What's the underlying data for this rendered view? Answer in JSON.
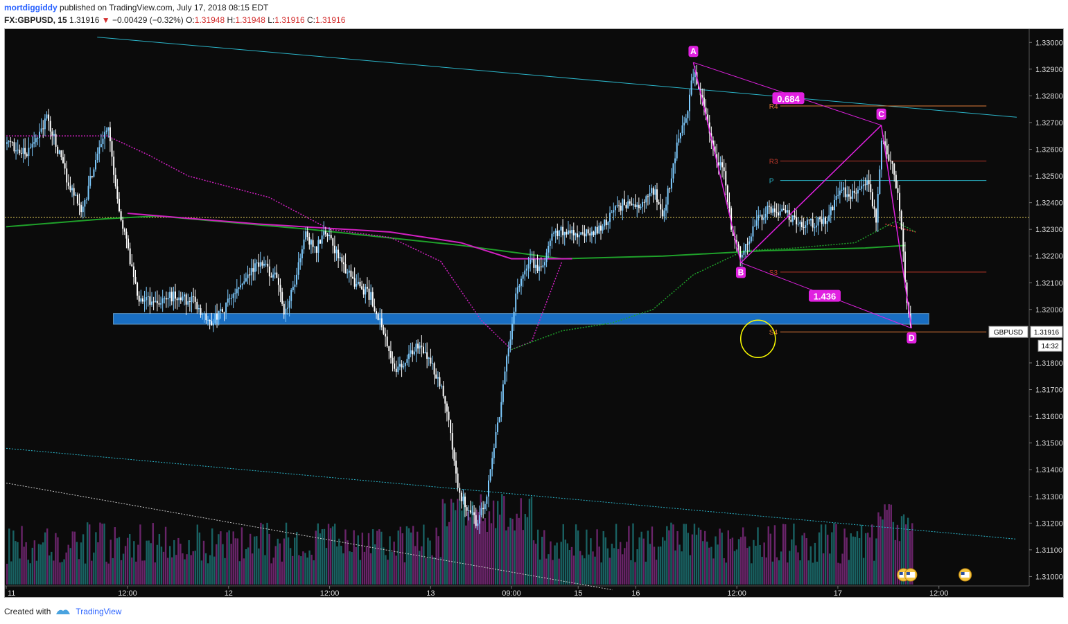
{
  "header": {
    "author": "mortdiggiddy",
    "published": "published on TradingView.com, July 17, 2018 08:15 EDT",
    "symbol": "FX:GBPUSD, 15",
    "last": "1.31916",
    "change": "−0.00429 (−0.32%)",
    "o_label": "O:",
    "o": "1.31948",
    "h_label": "H:",
    "h": "1.31948",
    "l_label": "L:",
    "l": "1.31916",
    "c_label": "C:",
    "c": "1.31916"
  },
  "footer": {
    "created_with": "Created with",
    "brand": "TradingView"
  },
  "chart_data": {
    "type": "candlestick",
    "symbol": "GBPUSD",
    "interval": "15",
    "ylim": [
      1.3097,
      1.3305
    ],
    "y_ticks": [
      "1.33000",
      "1.32900",
      "1.32800",
      "1.32700",
      "1.32600",
      "1.32500",
      "1.32400",
      "1.32300",
      "1.32200",
      "1.32100",
      "1.32000",
      "1.31800",
      "1.31700",
      "1.31600",
      "1.31500",
      "1.31400",
      "1.31300",
      "1.31200",
      "1.31100",
      "1.31000"
    ],
    "x_ticks": [
      {
        "label": "11",
        "x": 0
      },
      {
        "label": "12:00",
        "x": 0.12
      },
      {
        "label": "12",
        "x": 0.22
      },
      {
        "label": "12:00",
        "x": 0.32
      },
      {
        "label": "13",
        "x": 0.42
      },
      {
        "label": "09:00",
        "x": 0.5
      },
      {
        "label": "15",
        "x": 0.566
      },
      {
        "label": "16",
        "x": 0.623
      },
      {
        "label": "12:00",
        "x": 0.723
      },
      {
        "label": "17",
        "x": 0.823
      },
      {
        "label": "12:00",
        "x": 0.923
      }
    ],
    "price_label": "GBPUSD",
    "price_value": "1.31916",
    "countdown": "14:32",
    "pivot_levels": [
      {
        "name": "R4",
        "value": 1.32762,
        "color": "#e07b39"
      },
      {
        "name": "R3",
        "value": 1.32556,
        "color": "#c0392b"
      },
      {
        "name": "P",
        "value": 1.32483,
        "color": "#2bb5c9"
      },
      {
        "name": "S3",
        "value": 1.3214,
        "color": "#c0392b"
      },
      {
        "name": "S4",
        "value": 1.31916,
        "color": "#e07b39"
      }
    ],
    "support_zone": [
      1.31945,
      1.31985
    ],
    "harmonic_pattern": {
      "color": "#e020e0",
      "points": [
        {
          "label": "A",
          "t": 0.68,
          "price": 1.32925
        },
        {
          "label": "B",
          "t": 0.727,
          "price": 1.32175
        },
        {
          "label": "C",
          "t": 0.866,
          "price": 1.3269
        },
        {
          "label": "D",
          "t": 0.896,
          "price": 1.3193
        }
      ],
      "ratios": [
        {
          "text": "0.684",
          "t": 0.774,
          "price": 1.3279
        },
        {
          "text": "1.436",
          "t": 0.81,
          "price": 1.3205
        }
      ]
    },
    "close_series": [
      {
        "t": 0.0,
        "p": 1.3262
      },
      {
        "t": 0.02,
        "p": 1.3258
      },
      {
        "t": 0.04,
        "p": 1.3272
      },
      {
        "t": 0.06,
        "p": 1.3248
      },
      {
        "t": 0.075,
        "p": 1.3237
      },
      {
        "t": 0.09,
        "p": 1.326
      },
      {
        "t": 0.1,
        "p": 1.3268
      },
      {
        "t": 0.11,
        "p": 1.324
      },
      {
        "t": 0.12,
        "p": 1.3222
      },
      {
        "t": 0.13,
        "p": 1.3205
      },
      {
        "t": 0.145,
        "p": 1.3203
      },
      {
        "t": 0.165,
        "p": 1.3205
      },
      {
        "t": 0.185,
        "p": 1.3203
      },
      {
        "t": 0.2,
        "p": 1.3195
      },
      {
        "t": 0.215,
        "p": 1.32
      },
      {
        "t": 0.235,
        "p": 1.3212
      },
      {
        "t": 0.25,
        "p": 1.3217
      },
      {
        "t": 0.265,
        "p": 1.3213
      },
      {
        "t": 0.275,
        "p": 1.3198
      },
      {
        "t": 0.285,
        "p": 1.321
      },
      {
        "t": 0.295,
        "p": 1.3228
      },
      {
        "t": 0.305,
        "p": 1.3222
      },
      {
        "t": 0.315,
        "p": 1.323
      },
      {
        "t": 0.33,
        "p": 1.3218
      },
      {
        "t": 0.345,
        "p": 1.321
      },
      {
        "t": 0.36,
        "p": 1.3205
      },
      {
        "t": 0.372,
        "p": 1.3192
      },
      {
        "t": 0.382,
        "p": 1.3178
      },
      {
        "t": 0.395,
        "p": 1.318
      },
      {
        "t": 0.405,
        "p": 1.3186
      },
      {
        "t": 0.415,
        "p": 1.3183
      },
      {
        "t": 0.425,
        "p": 1.3175
      },
      {
        "t": 0.435,
        "p": 1.3165
      },
      {
        "t": 0.445,
        "p": 1.3135
      },
      {
        "t": 0.455,
        "p": 1.3125
      },
      {
        "t": 0.465,
        "p": 1.312
      },
      {
        "t": 0.475,
        "p": 1.313
      },
      {
        "t": 0.485,
        "p": 1.3155
      },
      {
        "t": 0.495,
        "p": 1.3182
      },
      {
        "t": 0.505,
        "p": 1.3208
      },
      {
        "t": 0.515,
        "p": 1.3218
      },
      {
        "t": 0.53,
        "p": 1.3215
      },
      {
        "t": 0.54,
        "p": 1.3228
      },
      {
        "t": 0.555,
        "p": 1.323
      },
      {
        "t": 0.575,
        "p": 1.3228
      },
      {
        "t": 0.59,
        "p": 1.3232
      },
      {
        "t": 0.61,
        "p": 1.324
      },
      {
        "t": 0.625,
        "p": 1.3238
      },
      {
        "t": 0.64,
        "p": 1.3245
      },
      {
        "t": 0.65,
        "p": 1.3235
      },
      {
        "t": 0.662,
        "p": 1.326
      },
      {
        "t": 0.672,
        "p": 1.3272
      },
      {
        "t": 0.68,
        "p": 1.329
      },
      {
        "t": 0.69,
        "p": 1.3275
      },
      {
        "t": 0.7,
        "p": 1.3258
      },
      {
        "t": 0.71,
        "p": 1.325
      },
      {
        "t": 0.718,
        "p": 1.3228
      },
      {
        "t": 0.727,
        "p": 1.322
      },
      {
        "t": 0.74,
        "p": 1.3232
      },
      {
        "t": 0.755,
        "p": 1.3238
      },
      {
        "t": 0.77,
        "p": 1.3236
      },
      {
        "t": 0.79,
        "p": 1.3232
      },
      {
        "t": 0.81,
        "p": 1.3233
      },
      {
        "t": 0.825,
        "p": 1.3245
      },
      {
        "t": 0.84,
        "p": 1.3242
      },
      {
        "t": 0.852,
        "p": 1.325
      },
      {
        "t": 0.86,
        "p": 1.3232
      },
      {
        "t": 0.866,
        "p": 1.3265
      },
      {
        "t": 0.875,
        "p": 1.3255
      },
      {
        "t": 0.883,
        "p": 1.324
      },
      {
        "t": 0.89,
        "p": 1.3205
      },
      {
        "t": 0.896,
        "p": 1.3192
      }
    ],
    "ma_green": [
      {
        "t": 0.0,
        "p": 1.3231
      },
      {
        "t": 0.1,
        "p": 1.3234
      },
      {
        "t": 0.15,
        "p": 1.3235
      },
      {
        "t": 0.3,
        "p": 1.323
      },
      {
        "t": 0.45,
        "p": 1.3224
      },
      {
        "t": 0.55,
        "p": 1.3219
      },
      {
        "t": 0.65,
        "p": 1.322
      },
      {
        "t": 0.75,
        "p": 1.3222
      },
      {
        "t": 0.85,
        "p": 1.3223
      },
      {
        "t": 0.89,
        "p": 1.3224
      }
    ],
    "ma_magenta_solid": [
      {
        "t": 0.12,
        "p": 1.3236
      },
      {
        "t": 0.25,
        "p": 1.3232
      },
      {
        "t": 0.38,
        "p": 1.3229
      },
      {
        "t": 0.45,
        "p": 1.3225
      },
      {
        "t": 0.5,
        "p": 1.3219
      },
      {
        "t": 0.56,
        "p": 1.3219
      }
    ],
    "ma_magenta_dotted": [
      {
        "t": 0.0,
        "p": 1.3265
      },
      {
        "t": 0.1,
        "p": 1.3265
      },
      {
        "t": 0.14,
        "p": 1.3258
      },
      {
        "t": 0.18,
        "p": 1.325
      },
      {
        "t": 0.26,
        "p": 1.3242
      },
      {
        "t": 0.32,
        "p": 1.323
      },
      {
        "t": 0.38,
        "p": 1.3227
      },
      {
        "t": 0.43,
        "p": 1.3218
      },
      {
        "t": 0.47,
        "p": 1.3196
      },
      {
        "t": 0.5,
        "p": 1.3185
      },
      {
        "t": 0.52,
        "p": 1.3188
      },
      {
        "t": 0.55,
        "p": 1.3218
      }
    ],
    "ma_green_dotted": [
      {
        "t": 0.5,
        "p": 1.3185
      },
      {
        "t": 0.55,
        "p": 1.3192
      },
      {
        "t": 0.6,
        "p": 1.3195
      },
      {
        "t": 0.64,
        "p": 1.32
      },
      {
        "t": 0.68,
        "p": 1.3213
      },
      {
        "t": 0.73,
        "p": 1.3222
      },
      {
        "t": 0.78,
        "p": 1.3223
      },
      {
        "t": 0.84,
        "p": 1.3225
      },
      {
        "t": 0.88,
        "p": 1.3233
      },
      {
        "t": 0.9,
        "p": 1.3229
      }
    ],
    "ma_red_dotted": [
      {
        "t": 0.87,
        "p": 1.3232
      },
      {
        "t": 0.9,
        "p": 1.3229
      }
    ],
    "trendlines": [
      {
        "from": {
          "t": 0.09,
          "p": 1.3302
        },
        "to": {
          "t": 1.0,
          "p": 1.3272
        },
        "color": "#2bb5c9",
        "style": "solid"
      },
      {
        "from": {
          "t": 0.0,
          "p": 1.3148
        },
        "to": {
          "t": 1.0,
          "p": 1.3114
        },
        "color": "#2bb5c9",
        "style": "dotted"
      },
      {
        "from": {
          "t": 0.0,
          "p": 1.3135
        },
        "to": {
          "t": 0.6,
          "p": 1.3095
        },
        "color": "#cccccc",
        "style": "dotted"
      }
    ],
    "horizontal_line": {
      "value": 1.32345,
      "color": "#e8d25c",
      "style": "dotted"
    },
    "highlight_circle": {
      "t": 0.744,
      "price": 1.3189
    }
  }
}
